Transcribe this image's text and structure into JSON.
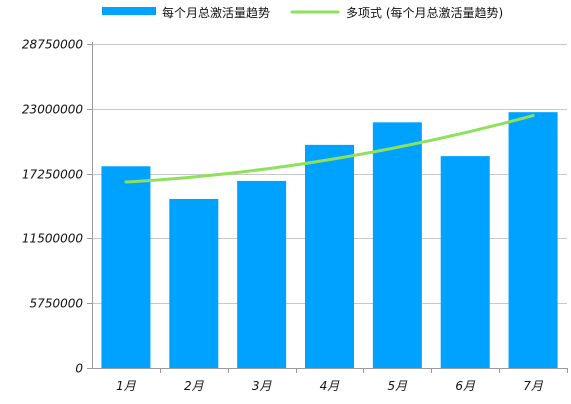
{
  "colors": {
    "bar": "#00a2ff",
    "trend": "#8fe15b",
    "grid": "#c8c8c8",
    "axis": "#9a9a9a",
    "text": "#111111"
  },
  "legend": {
    "bar_label": "每个月总激活量趋势",
    "trend_label": "多项式 (每个月总激活量趋势)"
  },
  "chart_data": {
    "type": "bar",
    "categories": [
      "1月",
      "2月",
      "3月",
      "4月",
      "5月",
      "6月",
      "7月"
    ],
    "series": [
      {
        "name": "每个月总激活量趋势",
        "values": [
          17900000,
          15000000,
          16600000,
          19800000,
          21800000,
          18800000,
          22700000
        ]
      }
    ],
    "trendline": {
      "name": "多项式 (每个月总激活量趋势)",
      "type": "polynomial",
      "start": 16500000,
      "end": 22400000
    },
    "ylim": [
      0,
      28750000
    ],
    "yticks": [
      0,
      5750000,
      11500000,
      17250000,
      23000000,
      28750000
    ],
    "ytick_labels": [
      "0",
      "5750000",
      "11500000",
      "17250000",
      "23000000",
      "28750000"
    ],
    "grid": true,
    "legend_position": "top"
  }
}
